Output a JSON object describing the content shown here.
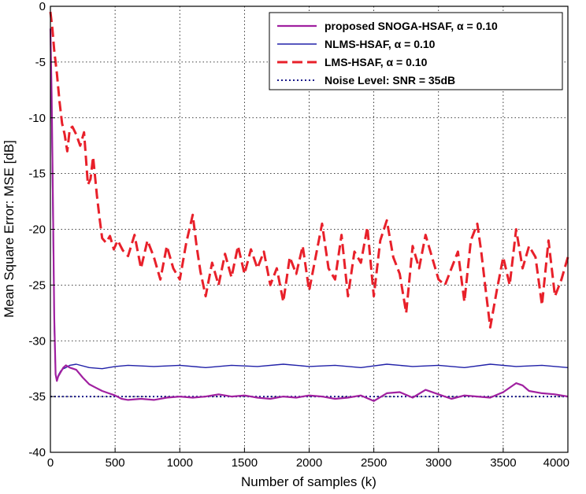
{
  "chart_data": {
    "type": "line",
    "title": "",
    "xlabel": "Number of samples (k)",
    "ylabel": "Mean Square Error: MSE [dB]",
    "xlim": [
      0,
      4000
    ],
    "ylim": [
      -40,
      0
    ],
    "xticks": [
      0,
      500,
      1000,
      1500,
      2000,
      2500,
      3000,
      3500,
      4000
    ],
    "yticks": [
      0,
      -5,
      -10,
      -15,
      -20,
      -25,
      -30,
      -35,
      -40
    ],
    "grid": true,
    "legend_position": "top-right",
    "series": [
      {
        "name": "proposed SNOGA-HSAF, α = 0.10",
        "color": "#a020a0",
        "style": "solid",
        "x": [
          0,
          10,
          20,
          30,
          40,
          50,
          60,
          80,
          100,
          120,
          150,
          200,
          250,
          300,
          350,
          400,
          450,
          500,
          550,
          600,
          700,
          800,
          900,
          1000,
          1100,
          1200,
          1300,
          1400,
          1500,
          1600,
          1700,
          1800,
          1900,
          2000,
          2100,
          2200,
          2300,
          2400,
          2500,
          2600,
          2700,
          2800,
          2900,
          3000,
          3100,
          3200,
          3300,
          3400,
          3500,
          3600,
          3650,
          3700,
          3800,
          3900,
          4000
        ],
        "y": [
          -2,
          -8,
          -18,
          -28,
          -33,
          -33.6,
          -33.2,
          -32.8,
          -32.4,
          -32.2,
          -32.4,
          -32.6,
          -33.3,
          -33.9,
          -34.2,
          -34.5,
          -34.7,
          -34.9,
          -35.2,
          -35.3,
          -35.2,
          -35.3,
          -35.1,
          -35.0,
          -35.1,
          -35.0,
          -34.8,
          -35.0,
          -34.9,
          -35.1,
          -35.2,
          -35.0,
          -35.1,
          -34.9,
          -35.0,
          -35.2,
          -35.1,
          -34.9,
          -35.4,
          -34.7,
          -34.6,
          -35.1,
          -34.4,
          -34.8,
          -35.2,
          -34.9,
          -35.0,
          -35.1,
          -34.6,
          -33.8,
          -34.0,
          -34.5,
          -34.7,
          -34.8,
          -35.0
        ]
      },
      {
        "name": "NLMS-HSAF, α = 0.10",
        "color": "#2020a8",
        "style": "solid",
        "x": [
          0,
          10,
          20,
          30,
          40,
          50,
          60,
          80,
          100,
          120,
          150,
          200,
          300,
          400,
          500,
          600,
          800,
          1000,
          1200,
          1400,
          1600,
          1800,
          2000,
          2200,
          2400,
          2600,
          2800,
          3000,
          3200,
          3400,
          3600,
          3800,
          4000
        ],
        "y": [
          -2,
          -10,
          -20,
          -29,
          -33,
          -33.5,
          -33.1,
          -32.7,
          -32.5,
          -32.4,
          -32.2,
          -32.1,
          -32.4,
          -32.5,
          -32.3,
          -32.2,
          -32.3,
          -32.2,
          -32.4,
          -32.2,
          -32.3,
          -32.1,
          -32.3,
          -32.2,
          -32.4,
          -32.1,
          -32.3,
          -32.2,
          -32.4,
          -32.1,
          -32.3,
          -32.2,
          -32.4
        ]
      },
      {
        "name": "LMS-HSAF, α = 0.10",
        "color": "#e8202a",
        "style": "dashed",
        "x": [
          0,
          15,
          30,
          50,
          70,
          90,
          110,
          130,
          150,
          170,
          200,
          230,
          260,
          290,
          310,
          330,
          360,
          380,
          400,
          430,
          460,
          490,
          520,
          560,
          600,
          650,
          700,
          750,
          800,
          850,
          900,
          950,
          1000,
          1050,
          1100,
          1130,
          1160,
          1200,
          1250,
          1300,
          1350,
          1400,
          1450,
          1500,
          1550,
          1600,
          1650,
          1700,
          1750,
          1800,
          1850,
          1900,
          1950,
          2000,
          2050,
          2100,
          2150,
          2200,
          2250,
          2300,
          2350,
          2400,
          2450,
          2500,
          2550,
          2600,
          2650,
          2700,
          2750,
          2800,
          2850,
          2900,
          2950,
          3000,
          3050,
          3100,
          3150,
          3200,
          3250,
          3300,
          3330,
          3360,
          3400,
          3450,
          3500,
          3550,
          3600,
          3650,
          3700,
          3750,
          3800,
          3850,
          3900,
          3950,
          4000
        ],
        "y": [
          -0.5,
          -2,
          -4,
          -6,
          -8.5,
          -10.5,
          -11.5,
          -13,
          -11,
          -10.8,
          -11.5,
          -12.5,
          -11.3,
          -16,
          -15.5,
          -13.5,
          -17,
          -19,
          -20.8,
          -21.2,
          -20.6,
          -21.8,
          -21.0,
          -21.9,
          -22.4,
          -20.5,
          -23.5,
          -21.0,
          -22.5,
          -24.5,
          -21.5,
          -23.5,
          -24.5,
          -21.2,
          -18.7,
          -21.5,
          -23.8,
          -26.0,
          -23.0,
          -25.0,
          -22.2,
          -24.3,
          -21.5,
          -24.0,
          -21.8,
          -23.5,
          -22.0,
          -25.0,
          -23.5,
          -26.5,
          -22.5,
          -24.0,
          -21.5,
          -25.5,
          -22.5,
          -19.5,
          -23.5,
          -24.5,
          -20.5,
          -26.0,
          -22.0,
          -23.0,
          -19.8,
          -26.0,
          -21.0,
          -19.2,
          -22.5,
          -24.0,
          -27.5,
          -21.5,
          -23.5,
          -20.5,
          -22.5,
          -24.5,
          -25.0,
          -23.5,
          -22.0,
          -26.5,
          -21.0,
          -19.5,
          -22.0,
          -25.0,
          -28.8,
          -25.5,
          -22.5,
          -25.0,
          -20.0,
          -23.5,
          -21.5,
          -22.5,
          -26.8,
          -21.0,
          -26.0,
          -24.5,
          -22.5
        ]
      },
      {
        "name": "Noise Level: SNR = 35dB",
        "color": "#1a1a8a",
        "style": "dotted",
        "x": [
          0,
          4000
        ],
        "y": [
          -35,
          -35
        ]
      }
    ]
  }
}
